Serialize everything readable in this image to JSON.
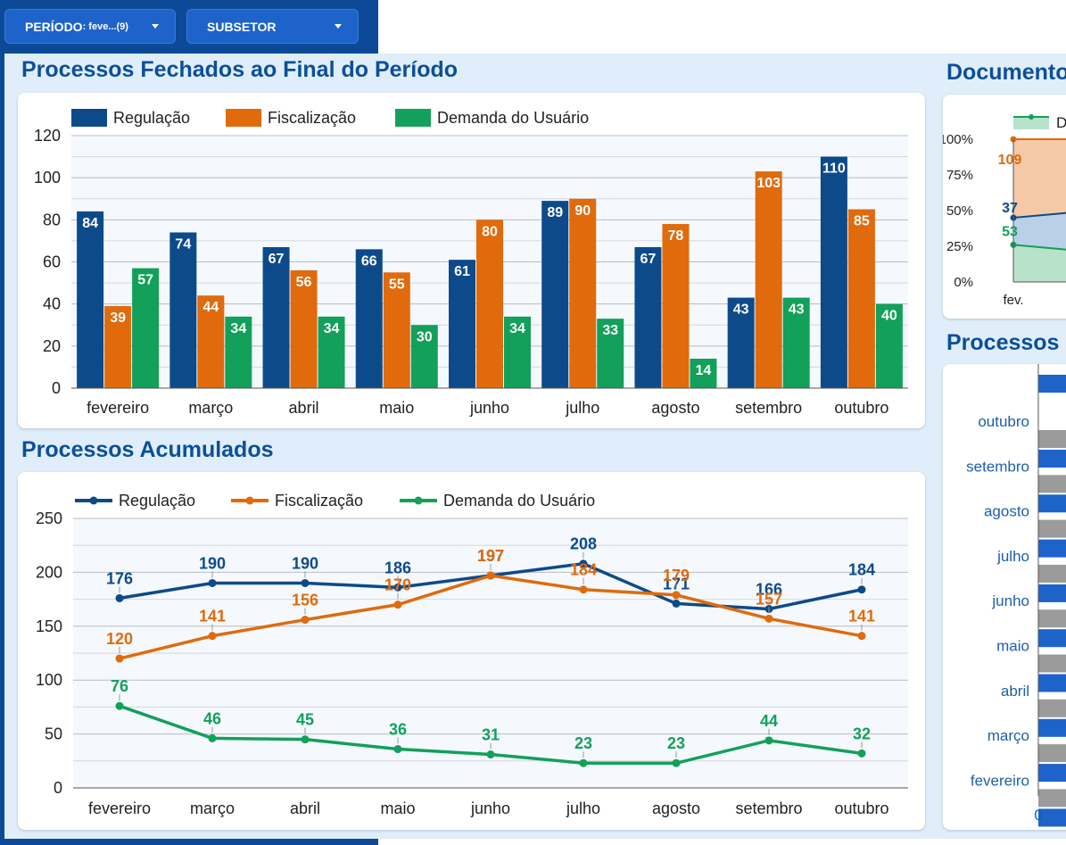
{
  "filters": {
    "periodo": {
      "label": "PERÍODO",
      "value": ": feve...(9)"
    },
    "subsetor": {
      "label": "SUBSETOR"
    }
  },
  "sections": {
    "fechados_title": "Processos Fechados ao Final do Período",
    "acumulados_title": "Processos Acumulados",
    "documentos_title": "Documento",
    "processos_right_title": "Processos"
  },
  "colors": {
    "regulacao": "#0d4a8a",
    "fiscalizacao": "#e06a0c",
    "demanda": "#12a05a"
  },
  "chart_data": [
    {
      "type": "bar",
      "title": "Processos Fechados ao Final do Período",
      "categories": [
        "fevereiro",
        "março",
        "abril",
        "maio",
        "junho",
        "julho",
        "agosto",
        "setembro",
        "outubro"
      ],
      "series": [
        {
          "name": "Regulação",
          "values": [
            84,
            74,
            67,
            66,
            61,
            89,
            67,
            43,
            110
          ]
        },
        {
          "name": "Fiscalização",
          "values": [
            39,
            44,
            56,
            55,
            80,
            90,
            78,
            103,
            85
          ]
        },
        {
          "name": "Demanda do Usuário",
          "values": [
            57,
            34,
            34,
            30,
            34,
            33,
            14,
            43,
            40
          ]
        }
      ],
      "yticks": [
        0,
        20,
        40,
        60,
        80,
        100,
        120
      ],
      "ylim": [
        0,
        120
      ],
      "legend": "top-left",
      "grid": true
    },
    {
      "type": "line",
      "title": "Processos Acumulados",
      "categories": [
        "fevereiro",
        "março",
        "abril",
        "maio",
        "junho",
        "julho",
        "agosto",
        "setembro",
        "outubro"
      ],
      "series": [
        {
          "name": "Regulação",
          "values": [
            176,
            190,
            190,
            186,
            197,
            208,
            171,
            166,
            184
          ]
        },
        {
          "name": "Fiscalização",
          "values": [
            120,
            141,
            156,
            170,
            197,
            184,
            179,
            157,
            141
          ]
        },
        {
          "name": "Demanda do Usuário",
          "values": [
            76,
            46,
            45,
            36,
            31,
            23,
            23,
            44,
            32
          ]
        }
      ],
      "yticks": [
        0,
        50,
        100,
        150,
        200,
        250
      ],
      "ylim": [
        0,
        250
      ],
      "legend": "top-left",
      "grid": true
    },
    {
      "type": "area",
      "title": "Documento",
      "x": [
        "fev."
      ],
      "legend_label": "D",
      "yticks": [
        "0%",
        "25%",
        "50%",
        "75%",
        "100%"
      ],
      "series": [
        {
          "values": [
            109
          ],
          "level": 1.0
        },
        {
          "values": [
            37
          ],
          "level": 0.45
        },
        {
          "values": [
            53
          ],
          "level": 0.26
        }
      ]
    },
    {
      "type": "bar",
      "title": "Processos",
      "orientation": "horizontal",
      "categories": [
        "outubro",
        "setembro",
        "agosto",
        "julho",
        "junho",
        "maio",
        "abril",
        "março",
        "fevereiro"
      ],
      "xticks": [
        "0"
      ]
    }
  ]
}
